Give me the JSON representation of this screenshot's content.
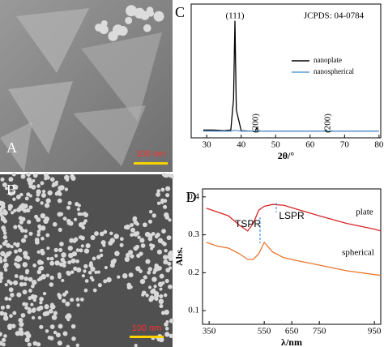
{
  "panels": [
    {
      "label": "A",
      "scale_bar": "100 nm"
    },
    {
      "label": "B",
      "scale_bar": "100 nm"
    }
  ],
  "chart_data": [
    {
      "type": "line",
      "panel_label": "C",
      "x_label": "2θ/°",
      "x": [
        29,
        32,
        35,
        37,
        37.8,
        38.2,
        38.6,
        40,
        43,
        44.1,
        44.5,
        45,
        50,
        55,
        60,
        64.2,
        64.6,
        65,
        70,
        75,
        80
      ],
      "series": [
        {
          "name": "nanoplate",
          "color": "#000000",
          "values": [
            0.02,
            0.02,
            0.015,
            0.02,
            0.3,
            1.0,
            0.2,
            0.015,
            0.01,
            0.01,
            0.04,
            0.01,
            0.01,
            0.01,
            0.01,
            0.01,
            0.02,
            0.01,
            0.01,
            0.01,
            0.01
          ]
        },
        {
          "name": "nanospherical",
          "color": "#5b9bd5",
          "values": [
            0.01,
            0.01,
            0.01,
            0.01,
            0.015,
            0.02,
            0.015,
            0.01,
            0.01,
            0.01,
            0.012,
            0.01,
            0.01,
            0.01,
            0.01,
            0.01,
            0.012,
            0.01,
            0.01,
            0.01,
            0.01
          ]
        }
      ],
      "xlim": [
        25.5,
        80.5
      ],
      "xticks": [
        30,
        40,
        50,
        60,
        70,
        80
      ],
      "ylim": [
        -0.05,
        1.15
      ],
      "legend": "upper right",
      "annotations": [
        "(111)",
        "(200)",
        "(200)",
        "JCPDS: 04-0784"
      ]
    },
    {
      "type": "line",
      "panel_label": "D",
      "x_label": "λ/nm",
      "y_label": "Abs.",
      "x": [
        340,
        380,
        420,
        460,
        490,
        510,
        530,
        550,
        580,
        620,
        680,
        750,
        850,
        950,
        973
      ],
      "series": [
        {
          "name": "plate",
          "color": "#d62728",
          "values": [
            0.37,
            0.36,
            0.35,
            0.325,
            0.31,
            0.33,
            0.365,
            0.375,
            0.38,
            0.378,
            0.365,
            0.35,
            0.33,
            0.315,
            0.31
          ]
        },
        {
          "name": "spherical",
          "color": "#e8762c",
          "values": [
            0.28,
            0.27,
            0.265,
            0.25,
            0.235,
            0.235,
            0.25,
            0.28,
            0.255,
            0.24,
            0.23,
            0.22,
            0.205,
            0.195,
            0.193
          ]
        }
      ],
      "xlim": [
        326,
        973
      ],
      "xticks": [
        350,
        550,
        650,
        750,
        950
      ],
      "ylim": [
        0.064,
        0.421
      ],
      "yticks": [
        0.1,
        0.2,
        0.3,
        0.4
      ],
      "annotations": [
        "plate",
        "spherical",
        "TSPR",
        "LSPR"
      ]
    }
  ]
}
